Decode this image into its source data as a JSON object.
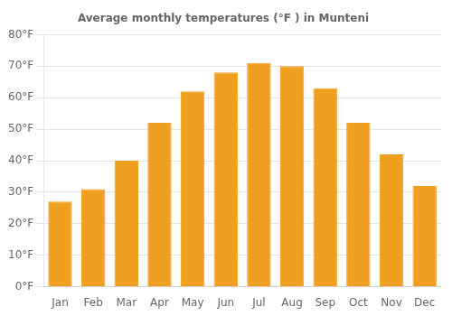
{
  "chart_data": {
    "type": "bar",
    "title": "Average monthly temperatures (°F ) in Munteni",
    "categories": [
      "Jan",
      "Feb",
      "Mar",
      "Apr",
      "May",
      "Jun",
      "Jul",
      "Aug",
      "Sep",
      "Oct",
      "Nov",
      "Dec"
    ],
    "values": [
      27,
      31,
      40,
      52,
      62,
      68,
      71,
      70,
      63,
      52,
      42,
      32
    ],
    "color": "#F0A020",
    "ylim": [
      0,
      80
    ],
    "yticks": [
      {
        "value": 0,
        "label": "0°F"
      },
      {
        "value": 10,
        "label": "10°F"
      },
      {
        "value": 20,
        "label": "20°F"
      },
      {
        "value": 30,
        "label": "30°F"
      },
      {
        "value": 40,
        "label": "40°F"
      },
      {
        "value": 50,
        "label": "50°F"
      },
      {
        "value": 60,
        "label": "60°F"
      },
      {
        "value": 70,
        "label": "70°F"
      },
      {
        "value": 80,
        "label": "80°F"
      }
    ],
    "grid": true
  }
}
